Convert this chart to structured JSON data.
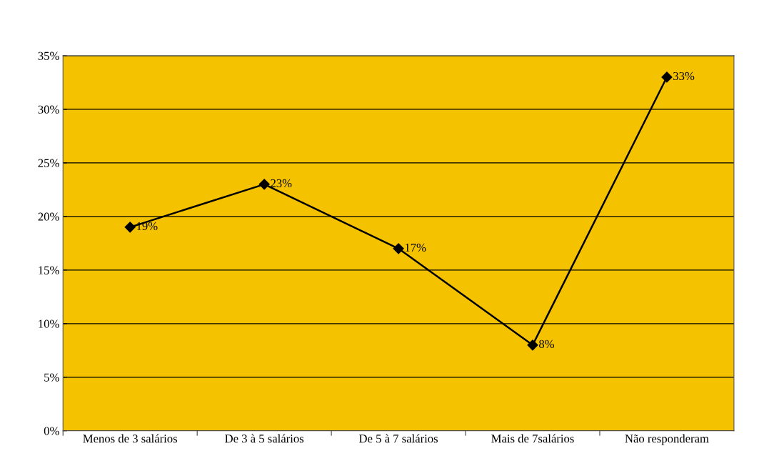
{
  "chart_data": {
    "type": "line",
    "categories": [
      "Menos de 3 salários",
      "De 3 à 5 salários",
      "De 5 à 7 salários",
      "Mais de 7salários",
      "Não responderam"
    ],
    "series": [
      {
        "color": "#000000",
        "values": [
          19,
          23,
          17,
          8,
          33
        ],
        "value_labels": [
          "19%",
          "23%",
          "17%",
          "8%",
          "33%"
        ]
      }
    ],
    "ylim": [
      0,
      35
    ],
    "yticks": [
      {
        "value": 0,
        "label": "0%"
      },
      {
        "value": 5,
        "label": "5%"
      },
      {
        "value": 10,
        "label": "10%"
      },
      {
        "value": 15,
        "label": "15%"
      },
      {
        "value": 20,
        "label": "20%"
      },
      {
        "value": 25,
        "label": "25%"
      },
      {
        "value": 30,
        "label": "30%"
      },
      {
        "value": 35,
        "label": "35%"
      }
    ],
    "grid": "y",
    "marker": "diamond",
    "line_style": "solid",
    "legend": false
  }
}
